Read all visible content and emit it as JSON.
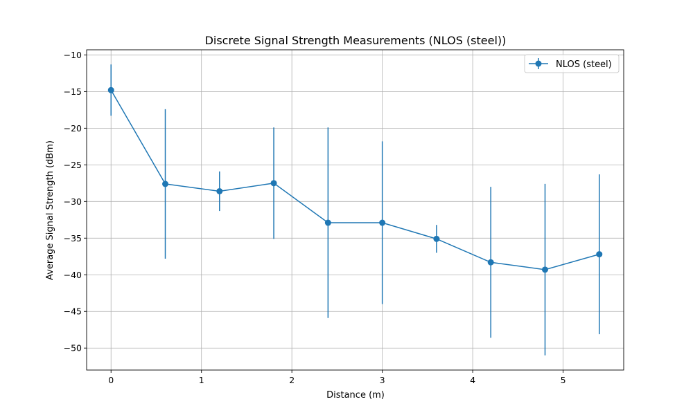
{
  "chart_data": {
    "type": "line",
    "title": "Discrete Signal Strength Measurements (NLOS (steel))",
    "xlabel": "Distance (m)",
    "ylabel": "Average Signal Strength (dBm)",
    "xlim": [
      -0.27,
      5.67
    ],
    "ylim": [
      -53,
      -9.3
    ],
    "xticks": [
      0,
      1,
      2,
      3,
      4,
      5
    ],
    "yticks": [
      -50,
      -45,
      -40,
      -35,
      -30,
      -25,
      -20,
      -15,
      -10
    ],
    "grid": true,
    "legend_position": "top-right",
    "series": [
      {
        "name": "NLOS (steel)",
        "color": "#1f77b4",
        "x": [
          0,
          0.6,
          1.2,
          1.8,
          2.4,
          3.0,
          3.6,
          4.2,
          4.8,
          5.4
        ],
        "y": [
          -14.8,
          -27.6,
          -28.6,
          -27.5,
          -32.9,
          -32.9,
          -35.1,
          -38.3,
          -39.3,
          -37.2
        ],
        "error": [
          3.5,
          10.2,
          2.7,
          7.6,
          13.0,
          11.1,
          1.9,
          10.3,
          11.7,
          10.9
        ]
      }
    ]
  }
}
